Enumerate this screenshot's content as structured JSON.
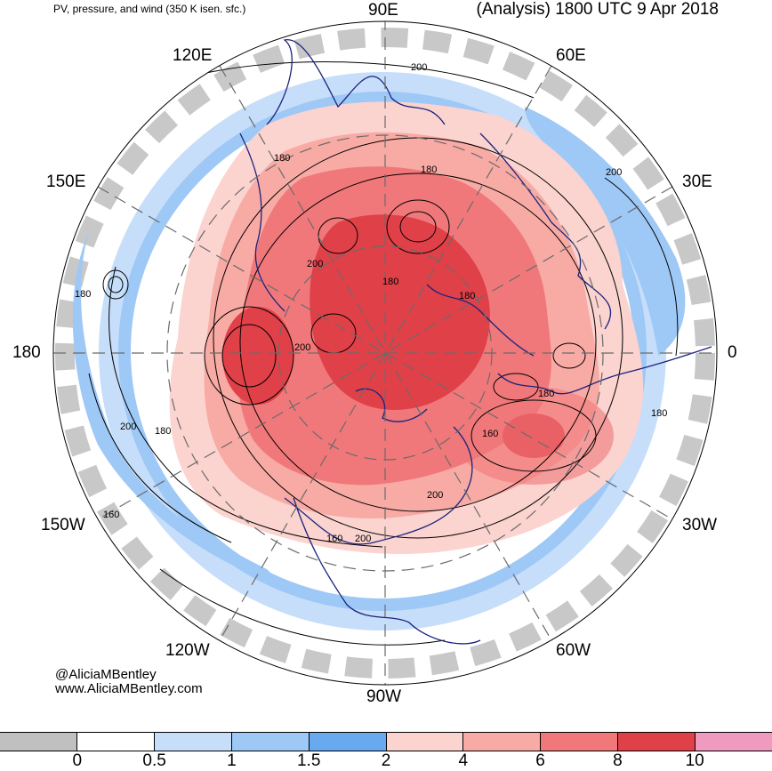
{
  "header": {
    "left_title": "PV, pressure, and wind (350 K isen. sfc.)",
    "right_title": "(Analysis) 1800 UTC 9 Apr 2018"
  },
  "longitude_labels": {
    "n": "90E",
    "ne1": "60E",
    "ne2": "30E",
    "e": "0",
    "se1": "30W",
    "se2": "60W",
    "s": "90W",
    "sw1": "120W",
    "sw2": "150W",
    "w": "180",
    "nw1": "150E",
    "nw2": "120E"
  },
  "contour_labels": [
    "200",
    "180",
    "180",
    "200",
    "200",
    "180",
    "180",
    "200",
    "180",
    "160",
    "180",
    "200",
    "180",
    "160",
    "160",
    "200",
    "180",
    "200"
  ],
  "credit": {
    "handle": "@AliciaMBentley",
    "site": "www.AliciaMBentley.com"
  },
  "colorbar": {
    "colors": [
      "#c0c0c0",
      "#ffffff",
      "#c6defa",
      "#9ec8f5",
      "#68aaf0",
      "#fbd3cf",
      "#f8aaa4",
      "#f0787a",
      "#e04048",
      "#f09ac0"
    ],
    "ticks": [
      "0",
      "0.5",
      "1",
      "1.5",
      "2",
      "4",
      "6",
      "8",
      "10"
    ]
  }
}
